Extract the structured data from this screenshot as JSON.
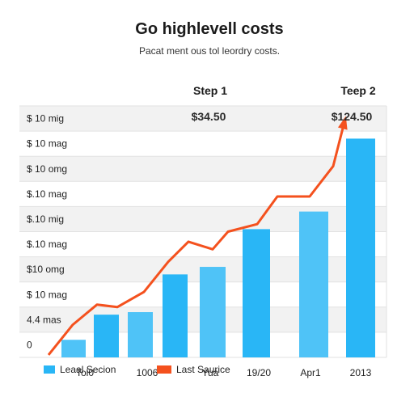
{
  "colors": {
    "bar": "#29b6f6",
    "bar_light": "#4fc3f7",
    "line": "#f4511e",
    "label_dark": "#2b2b2b",
    "label_red": "#d84315",
    "band": "#f2f2f2",
    "grid": "#e2e2e2"
  },
  "header": {
    "title": "Go highlevell costs",
    "subtitle": "Pacat ment ous tol leordry costs."
  },
  "steps": [
    "Step 1",
    "Teep 2"
  ],
  "value_labels": [
    "$34.50",
    "$124.50"
  ],
  "chart_data": {
    "type": "bar",
    "title": "Go highlevell costs",
    "subtitle": "Pacat ment ous tol leordry costs.",
    "y_tick_labels": [
      "$ 10 mig",
      "$ 10 mag",
      "$ 10 omg",
      "$.10 mag",
      "$.10 mig",
      "$.10 mag",
      "$10 omg",
      "$ 10 mag",
      "4.4 mas",
      "0"
    ],
    "x_tick_labels": [
      "Tol0",
      "1006",
      "Yua",
      "19/20",
      "Apr1",
      "2013"
    ],
    "ylim": [
      0,
      10
    ],
    "grid": true,
    "legend_position": "bottom",
    "series": [
      {
        "name": "Leaal Secion",
        "type": "bar",
        "values": [
          0.7,
          1.7,
          1.8,
          3.3,
          3.6,
          5.1,
          5.8,
          8.7
        ]
      },
      {
        "name": "Last Saurice",
        "type": "line",
        "values": [
          0.1,
          1.3,
          2.1,
          2.0,
          2.6,
          3.8,
          4.6,
          4.3,
          5.0,
          5.3,
          6.4,
          6.4,
          7.6,
          9.5
        ]
      }
    ],
    "annotations": [
      {
        "text": "$34.50",
        "position": "above Step 1"
      },
      {
        "text": "$124.50",
        "position": "above Teep 2"
      }
    ]
  }
}
